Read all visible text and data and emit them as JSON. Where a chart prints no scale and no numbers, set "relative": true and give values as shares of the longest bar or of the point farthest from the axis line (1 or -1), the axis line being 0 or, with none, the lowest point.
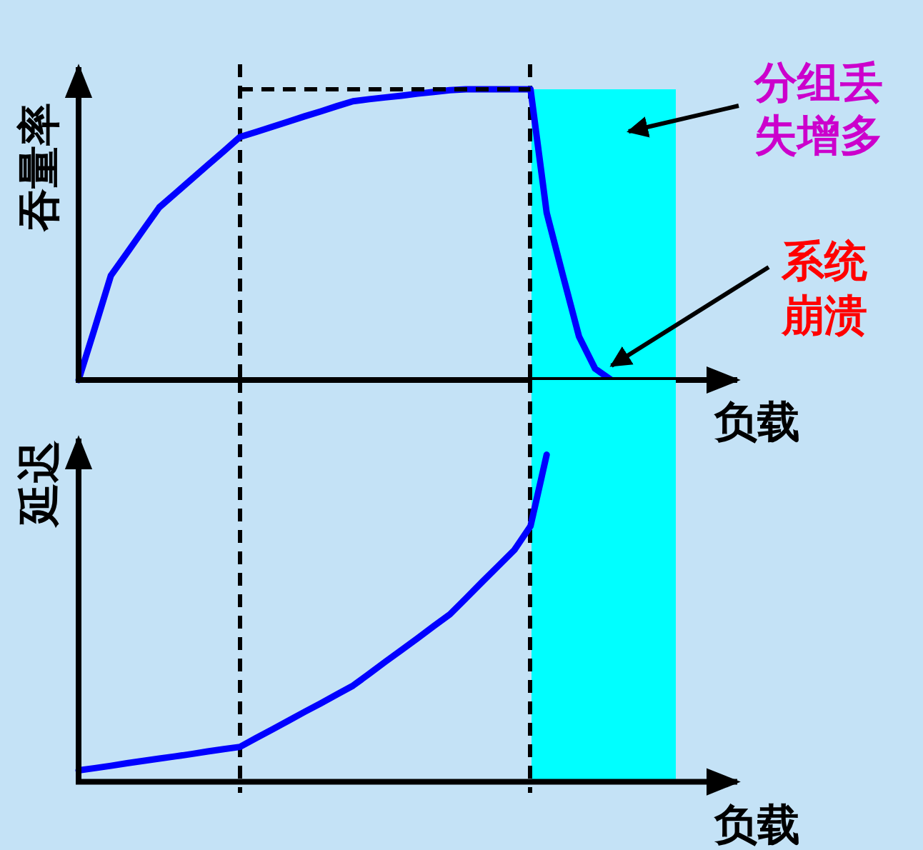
{
  "chart_data": [
    {
      "type": "line",
      "relative": true,
      "ylabel": "吞量率",
      "xlabel": "负载",
      "categories": [
        null,
        null,
        null,
        null,
        null,
        null,
        null,
        null,
        null,
        null,
        null,
        null,
        null,
        null,
        null,
        null,
        null,
        null,
        null,
        null,
        null,
        null,
        null,
        null,
        null,
        null,
        null,
        null,
        null,
        null,
        null,
        null,
        null,
        null,
        null,
        null,
        null,
        null
      ],
      "series": [
        {
          "color": "#0000ff",
          "values": [
            0,
            0.178,
            0.359,
            0.437,
            0.516,
            0.594,
            0.642,
            0.691,
            0.739,
            0.787,
            0.836,
            0.853,
            0.871,
            0.889,
            0.907,
            0.924,
            0.942,
            0.959,
            0.966,
            0.972,
            0.978,
            0.985,
            0.991,
            0.997,
            1,
            1,
            1,
            1,
            1,
            0.575,
            0.361,
            0.15,
            0.039,
            0,
            null,
            null,
            null,
            null
          ]
        },
        {
          "color": "#000000",
          "line_style": "dashed",
          "values": [
            null,
            null,
            null,
            null,
            null,
            null,
            null,
            null,
            null,
            null,
            1,
            1,
            1,
            1,
            1,
            1,
            1,
            1,
            1,
            1,
            1,
            1,
            1,
            1,
            1,
            1,
            1,
            1,
            1,
            null,
            null,
            null,
            null,
            null,
            null,
            null,
            null,
            null
          ]
        }
      ],
      "annotations": [
        "分组丢失增多",
        "系统崩溃"
      ]
    },
    {
      "type": "line",
      "relative": true,
      "ylabel": "延迟",
      "xlabel": "负载",
      "categories": [
        null,
        null,
        null,
        null,
        null,
        null,
        null,
        null,
        null,
        null,
        null,
        null,
        null,
        null,
        null,
        null,
        null,
        null,
        null,
        null,
        null,
        null,
        null,
        null,
        null,
        null,
        null,
        null,
        null,
        null,
        null,
        null,
        null,
        null,
        null,
        null,
        null,
        null
      ],
      "series": [
        {
          "color": "#0000ff",
          "values": [
            0.035,
            0.042,
            0.049,
            0.057,
            0.064,
            0.071,
            0.078,
            0.085,
            0.093,
            0.1,
            0.107,
            0.134,
            0.16,
            0.187,
            0.214,
            0.24,
            0.267,
            0.294,
            0.33,
            0.367,
            0.403,
            0.439,
            0.476,
            0.512,
            0.561,
            0.611,
            0.66,
            0.709,
            0.782,
            1,
            null,
            null,
            null,
            null,
            null,
            null,
            null,
            null
          ]
        }
      ]
    }
  ]
}
